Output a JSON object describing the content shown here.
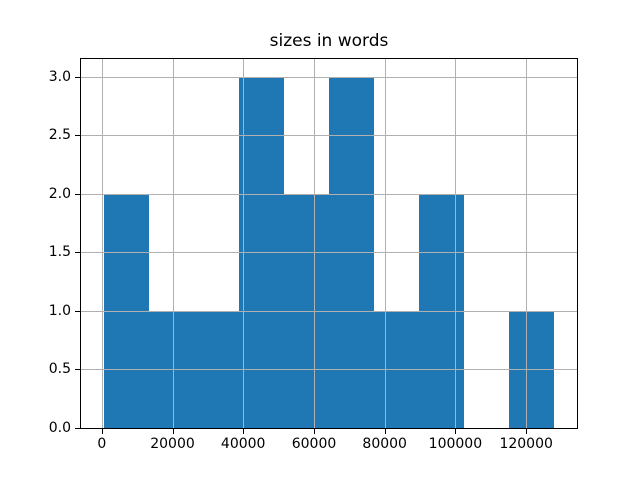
{
  "chart_data": {
    "type": "bar",
    "subtype": "histogram",
    "title": "sizes in words",
    "xlabel": "",
    "ylabel": "",
    "bin_edges": [
      500,
      13250,
      26000,
      38750,
      51500,
      64250,
      77000,
      89750,
      102500,
      115250,
      128000
    ],
    "counts": [
      2,
      1,
      1,
      3,
      2,
      3,
      1,
      2,
      0,
      1
    ],
    "xlim": [
      -5875,
      134375
    ],
    "ylim": [
      0,
      3.15
    ],
    "xticks": [
      0,
      20000,
      40000,
      60000,
      80000,
      100000,
      120000
    ],
    "xtick_labels": [
      "0",
      "20000",
      "40000",
      "60000",
      "80000",
      "100000",
      "120000"
    ],
    "yticks": [
      0.0,
      0.5,
      1.0,
      1.5,
      2.0,
      2.5,
      3.0
    ],
    "ytick_labels": [
      "0.0",
      "0.5",
      "1.0",
      "1.5",
      "2.0",
      "2.5",
      "3.0"
    ],
    "grid": true,
    "grid_above_bars": true,
    "legend": "none",
    "colors": {
      "bar": "#1f77b4",
      "grid": "#b0b0b0",
      "spine": "#000000",
      "text": "#000000",
      "background": "#ffffff"
    }
  }
}
